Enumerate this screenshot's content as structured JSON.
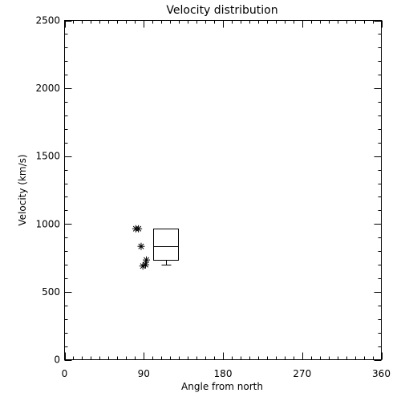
{
  "chart_data": {
    "type": "box",
    "title": "Velocity distribution",
    "xlabel": "Angle from north",
    "ylabel": "Velocity (km/s)",
    "xlim": [
      0,
      360
    ],
    "ylim": [
      0,
      2500
    ],
    "x_ticks": [
      0,
      90,
      180,
      270,
      360
    ],
    "y_ticks": [
      0,
      500,
      1000,
      1500,
      2000,
      2500
    ],
    "x_minor_step": 10,
    "y_minor_step": 100,
    "grid": false,
    "scatter_points": [
      {
        "x": 81,
        "y": 965
      },
      {
        "x": 84,
        "y": 965
      },
      {
        "x": 87,
        "y": 835
      },
      {
        "x": 89,
        "y": 690
      },
      {
        "x": 92,
        "y": 700
      },
      {
        "x": 93,
        "y": 735
      }
    ],
    "box": {
      "x_left": 101,
      "x_right": 129,
      "q1": 735,
      "median": 835,
      "q3": 965,
      "whisker_low": 700,
      "whisker_high": 965
    }
  }
}
